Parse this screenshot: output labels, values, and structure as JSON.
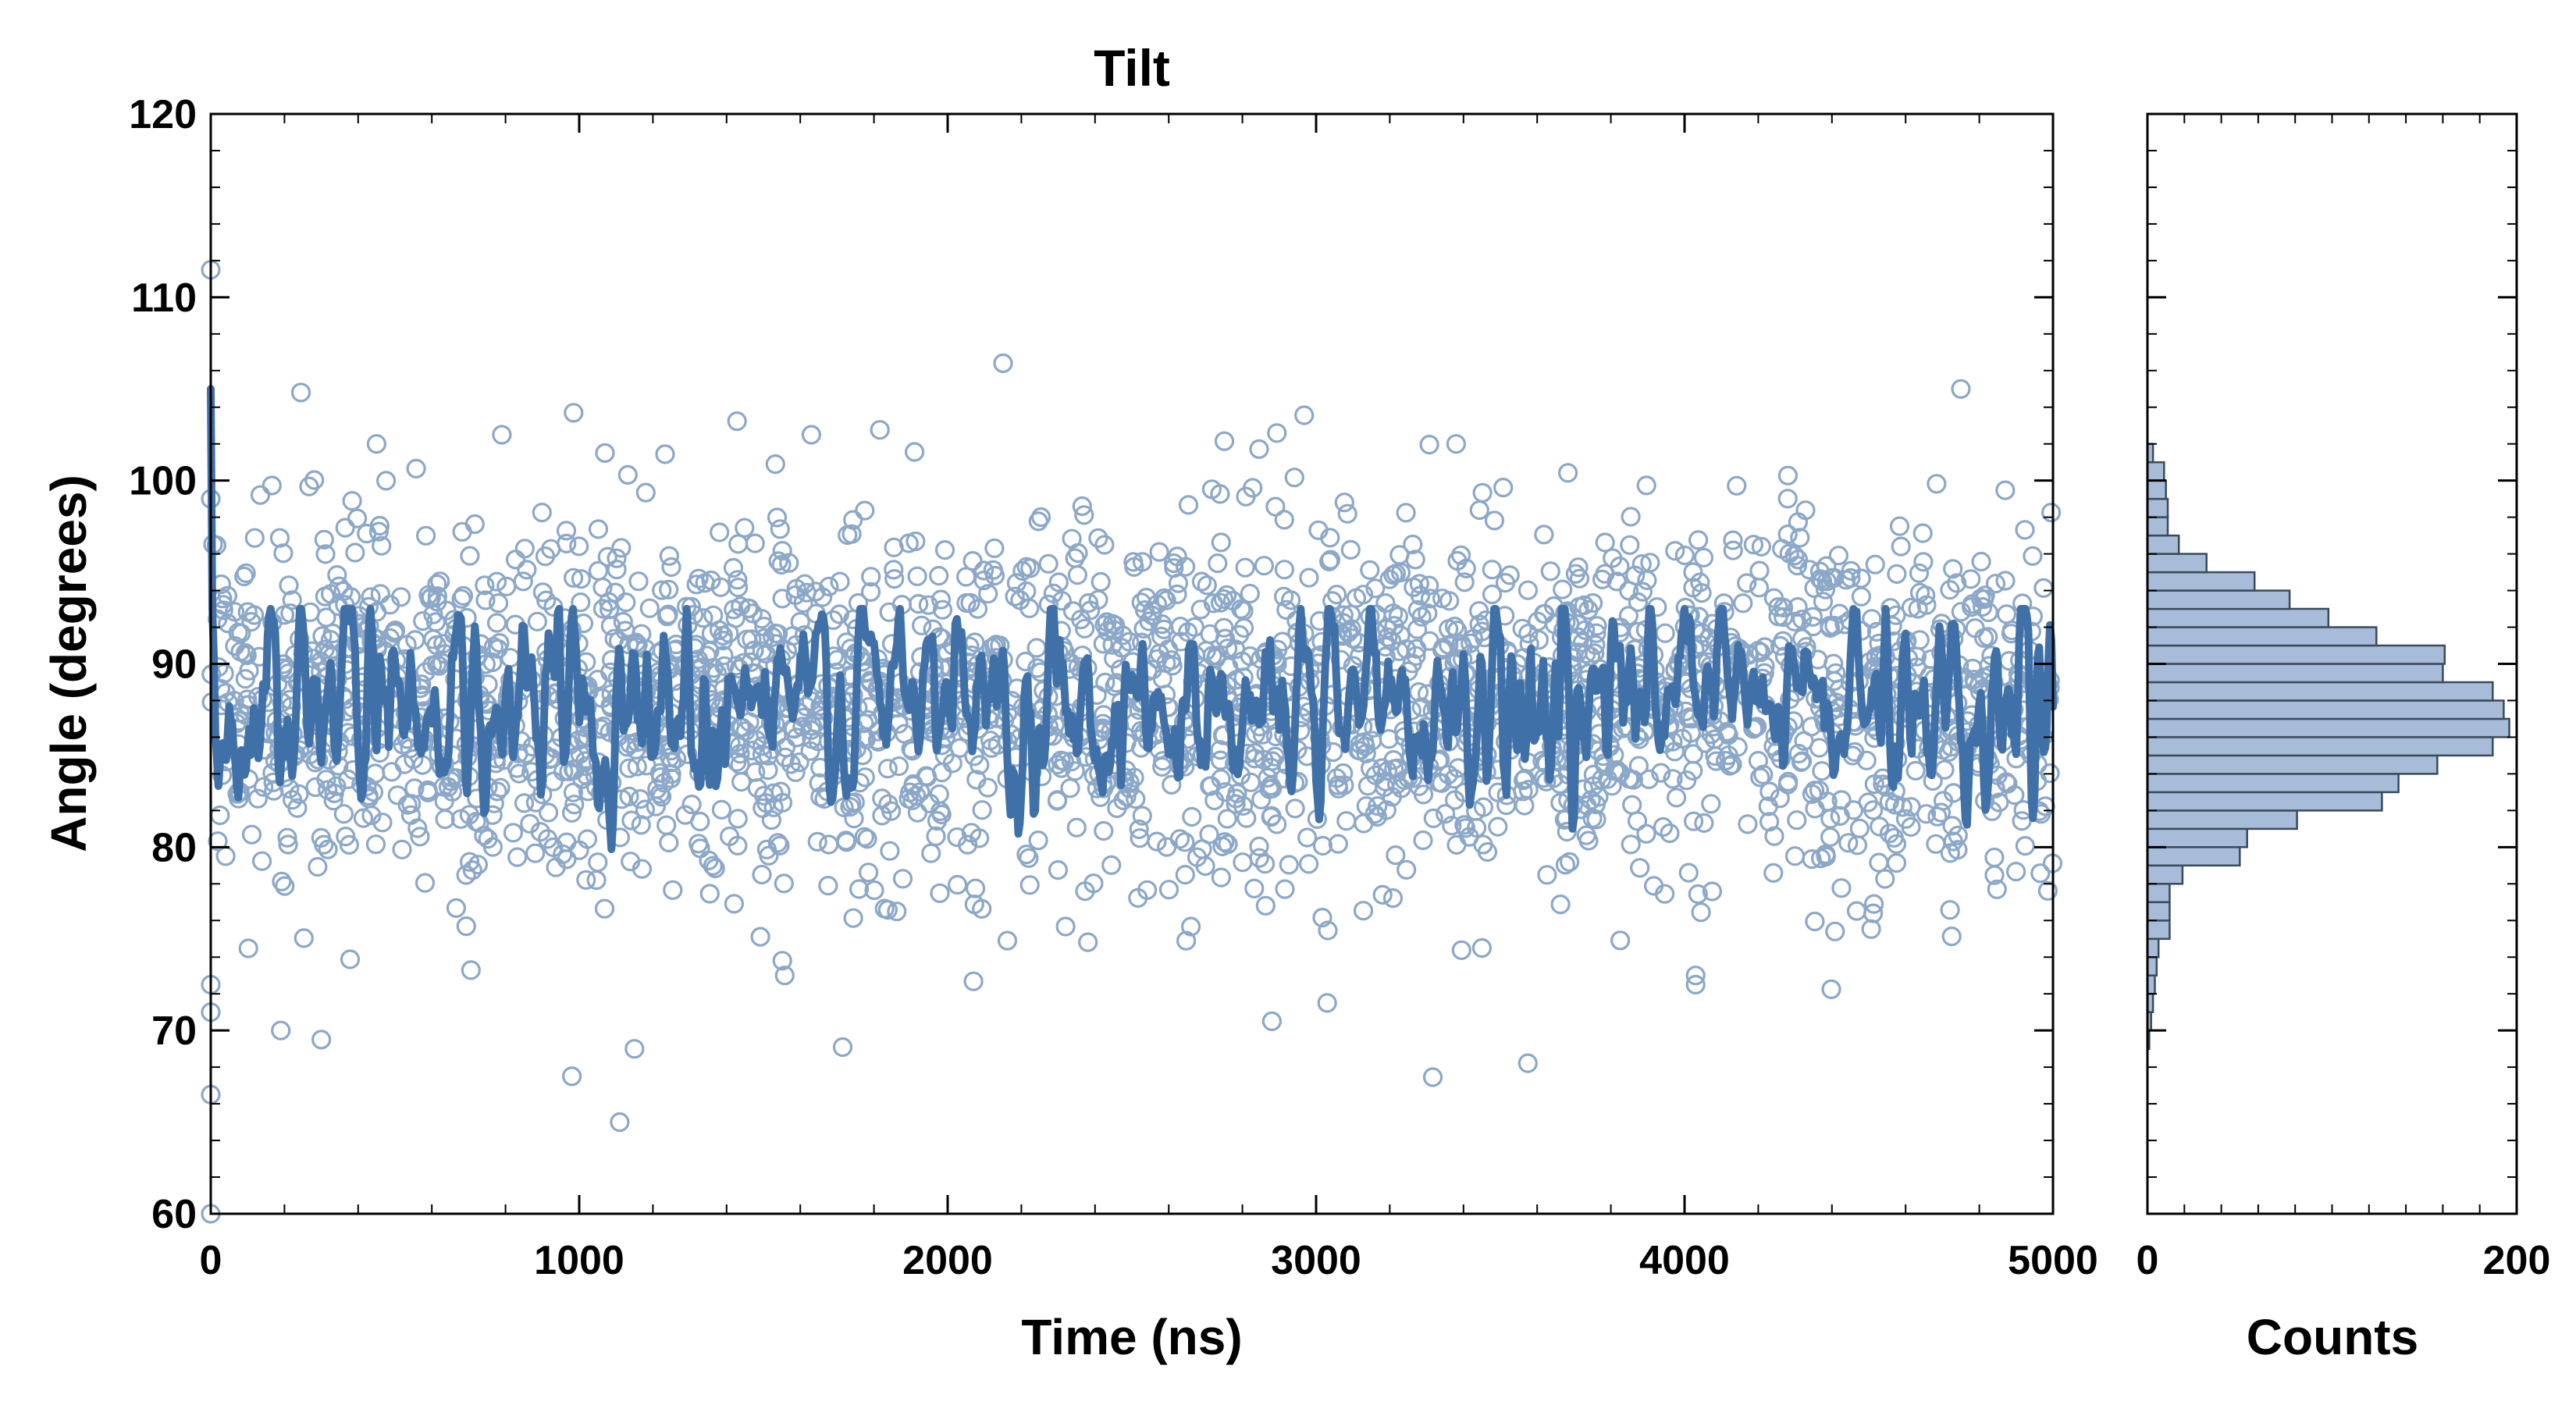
{
  "chart_data": [
    {
      "type": "scatter",
      "title": "Tilt",
      "xlabel": "Time (ns)",
      "ylabel": "Angle (degrees)",
      "xlim": [
        0,
        5000
      ],
      "ylim": [
        60,
        120
      ],
      "xticks": [
        "0",
        "1000",
        "2000",
        "3000",
        "4000",
        "5000"
      ],
      "yticks": [
        "60",
        "70",
        "80",
        "90",
        "100",
        "110",
        "120"
      ],
      "grid": false,
      "series": [
        {
          "style": "open-circle scatter",
          "color": "#8ca8c8",
          "n_points": 2500,
          "mean": 88,
          "std": 4.9,
          "notable_points": [
            [
              0,
              111.5
            ],
            [
              0,
              99
            ],
            [
              0,
              72.5
            ],
            [
              0,
              71
            ],
            [
              0,
              66.5
            ],
            [
              0,
              60
            ],
            [
              1110,
              65
            ],
            [
              980,
              67.5
            ],
            [
              1150,
              69
            ],
            [
              300,
              69.5
            ],
            [
              190,
              70
            ],
            [
              2880,
              70.5
            ],
            [
              3030,
              71.5
            ],
            [
              4030,
              72.5
            ],
            [
              450,
              102
            ],
            [
              790,
              102.5
            ],
            [
              1070,
              101.5
            ],
            [
              1630,
              102.5
            ],
            [
              3380,
              102
            ],
            [
              4750,
              105
            ],
            [
              4030,
              73
            ],
            [
              3450,
              74.5
            ]
          ]
        },
        {
          "style": "running-average line",
          "color": "#4070a8",
          "x_range": [
            0,
            5000
          ],
          "start_value": 105,
          "mean": 88,
          "range": [
            79,
            93
          ]
        }
      ]
    },
    {
      "type": "bar",
      "orientation": "horizontal",
      "xlabel": "Counts",
      "xlim": [
        0,
        200
      ],
      "xticks": [
        "0",
        "200"
      ],
      "ylim": [
        60,
        120
      ],
      "bin_width": 1,
      "color": "#a6bcd8",
      "bins": [
        {
          "y": 69,
          "count": 1
        },
        {
          "y": 70,
          "count": 2
        },
        {
          "y": 71,
          "count": 3
        },
        {
          "y": 72,
          "count": 4
        },
        {
          "y": 73,
          "count": 5
        },
        {
          "y": 74,
          "count": 6
        },
        {
          "y": 75,
          "count": 12
        },
        {
          "y": 76,
          "count": 12
        },
        {
          "y": 77,
          "count": 12
        },
        {
          "y": 78,
          "count": 19
        },
        {
          "y": 79,
          "count": 50
        },
        {
          "y": 80,
          "count": 54
        },
        {
          "y": 81,
          "count": 81
        },
        {
          "y": 82,
          "count": 127
        },
        {
          "y": 83,
          "count": 136
        },
        {
          "y": 84,
          "count": 157
        },
        {
          "y": 85,
          "count": 187
        },
        {
          "y": 86,
          "count": 196
        },
        {
          "y": 87,
          "count": 193
        },
        {
          "y": 88,
          "count": 187
        },
        {
          "y": 89,
          "count": 160
        },
        {
          "y": 90,
          "count": 161
        },
        {
          "y": 91,
          "count": 124
        },
        {
          "y": 92,
          "count": 98
        },
        {
          "y": 93,
          "count": 77
        },
        {
          "y": 94,
          "count": 58
        },
        {
          "y": 95,
          "count": 32
        },
        {
          "y": 96,
          "count": 17
        },
        {
          "y": 97,
          "count": 11
        },
        {
          "y": 98,
          "count": 11
        },
        {
          "y": 99,
          "count": 10
        },
        {
          "y": 100,
          "count": 9
        },
        {
          "y": 101,
          "count": 3
        }
      ]
    }
  ]
}
